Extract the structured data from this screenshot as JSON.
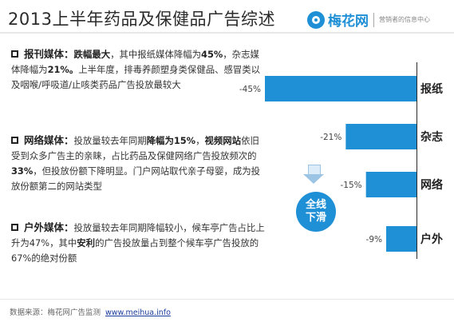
{
  "title": "2013上半年药品及保健品广告综述",
  "brand": {
    "name": "梅花网",
    "slogan": "营销者的信息中心"
  },
  "sections": [
    {
      "heading": "报刊媒体：",
      "parts": [
        {
          "t": "跌幅最大",
          "b": true
        },
        {
          "t": "，其中报纸媒体降幅为",
          "b": false
        },
        {
          "t": "45%",
          "b": true
        },
        {
          "t": "，杂志媒体降幅为",
          "b": false
        },
        {
          "t": "21%。",
          "b": true
        },
        {
          "t": "上半年度，排毒养颜塑身类保健品、感冒类以及咽喉/呼吸道/止咳类药品广告投放最较大",
          "b": false
        }
      ]
    },
    {
      "heading": "网络媒体：",
      "parts": [
        {
          "t": "投放量较去年同期",
          "b": false
        },
        {
          "t": "降幅为15%",
          "b": true
        },
        {
          "t": "，",
          "b": false
        },
        {
          "t": "视频网站",
          "b": true
        },
        {
          "t": "依旧受到众多广告主的亲睐，占比药品及保健网络广告投放频次的",
          "b": false
        },
        {
          "t": "33%",
          "b": true
        },
        {
          "t": "，但投放份额下降明显。门户网站取代亲子母婴，成为投放份额第二的网站类型",
          "b": false
        }
      ]
    },
    {
      "heading": "户外媒体：",
      "parts": [
        {
          "t": "投放量较去年同期降幅较小，候车亭广告占比上升为47%，其中",
          "b": false
        },
        {
          "t": "安利",
          "b": true
        },
        {
          "t": "的广告投放量占到整个候车亭广告投放的67%的绝对份额",
          "b": false
        }
      ]
    }
  ],
  "callout": "全线下滑",
  "footer": {
    "source": "数据来源：梅花网广告监测",
    "url": "www.meihua.info"
  },
  "chart_data": {
    "type": "bar",
    "orientation": "horizontal",
    "categories": [
      "报纸",
      "杂志",
      "网络",
      "户外"
    ],
    "values": [
      -45,
      -21,
      -15,
      -9
    ],
    "value_labels": [
      "-45%",
      "-21%",
      "-15%",
      "-9%"
    ],
    "bar_color": "#1f8fd6",
    "xlim": [
      -45,
      0
    ]
  }
}
